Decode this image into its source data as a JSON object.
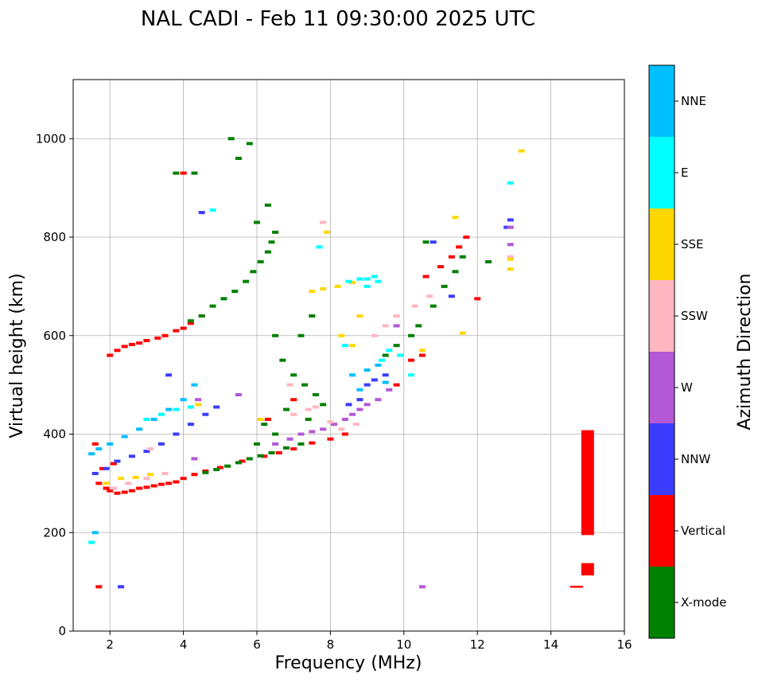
{
  "chart_data": {
    "type": "scatter",
    "title": "NAL CADI - Feb 11 09:30:00 2025 UTC",
    "xlabel": "Frequency (MHz)",
    "ylabel": "Virtual height (km)",
    "xlim": [
      1,
      16
    ],
    "ylim": [
      0,
      1120
    ],
    "xticks": [
      2,
      4,
      6,
      8,
      10,
      12,
      14,
      16
    ],
    "yticks": [
      0,
      200,
      400,
      600,
      800,
      1000
    ],
    "grid": true,
    "colorbar": {
      "label": "Azimuth Direction",
      "categories": [
        "X-mode",
        "Vertical",
        "NNW",
        "W",
        "SSW",
        "SSE",
        "E",
        "NNE"
      ],
      "colors": [
        "#008000",
        "#ff0000",
        "#3c3cff",
        "#b358d6",
        "#ffb6c1",
        "#ffd700",
        "#00ffff",
        "#00bfff"
      ]
    },
    "series": [
      {
        "name": "Vertical",
        "points": [
          [
            1.7,
            300
          ],
          [
            1.9,
            290
          ],
          [
            2.0,
            285
          ],
          [
            2.2,
            280
          ],
          [
            2.4,
            282
          ],
          [
            2.6,
            285
          ],
          [
            2.8,
            290
          ],
          [
            3.0,
            292
          ],
          [
            3.2,
            295
          ],
          [
            3.4,
            298
          ],
          [
            3.6,
            300
          ],
          [
            3.8,
            303
          ],
          [
            4.0,
            310
          ],
          [
            4.3,
            318
          ],
          [
            4.6,
            325
          ],
          [
            5.0,
            332
          ],
          [
            5.6,
            345
          ],
          [
            6.2,
            355
          ],
          [
            6.6,
            362
          ],
          [
            7.0,
            370
          ],
          [
            7.5,
            382
          ],
          [
            8.0,
            390
          ],
          [
            8.4,
            400
          ],
          [
            1.8,
            330
          ],
          [
            2.1,
            340
          ],
          [
            1.6,
            380
          ],
          [
            2.0,
            560
          ],
          [
            2.2,
            570
          ],
          [
            2.4,
            578
          ],
          [
            2.6,
            582
          ],
          [
            2.8,
            585
          ],
          [
            3.0,
            590
          ],
          [
            3.3,
            595
          ],
          [
            3.5,
            600
          ],
          [
            3.8,
            610
          ],
          [
            4.0,
            615
          ],
          [
            4.2,
            625
          ],
          [
            4.5,
            640
          ],
          [
            10.2,
            550
          ],
          [
            10.5,
            560
          ],
          [
            10.6,
            720
          ],
          [
            11.0,
            740
          ],
          [
            11.3,
            760
          ],
          [
            11.5,
            780
          ],
          [
            11.7,
            800
          ],
          [
            12.0,
            675
          ],
          [
            4.0,
            930
          ],
          [
            1.7,
            90
          ],
          [
            6.3,
            430
          ],
          [
            9.8,
            500
          ],
          [
            7.0,
            470
          ]
        ]
      },
      {
        "name": "X-mode",
        "points": [
          [
            4.6,
            322
          ],
          [
            4.9,
            328
          ],
          [
            5.2,
            335
          ],
          [
            5.5,
            342
          ],
          [
            5.8,
            350
          ],
          [
            6.1,
            356
          ],
          [
            6.4,
            362
          ],
          [
            6.8,
            372
          ],
          [
            7.2,
            380
          ],
          [
            4.2,
            630
          ],
          [
            4.5,
            640
          ],
          [
            4.8,
            660
          ],
          [
            5.1,
            675
          ],
          [
            5.4,
            690
          ],
          [
            5.7,
            710
          ],
          [
            5.9,
            730
          ],
          [
            6.1,
            750
          ],
          [
            6.3,
            770
          ],
          [
            6.4,
            790
          ],
          [
            6.5,
            810
          ],
          [
            6.3,
            865
          ],
          [
            6.0,
            830
          ],
          [
            5.5,
            960
          ],
          [
            5.8,
            990
          ],
          [
            5.3,
            1000
          ],
          [
            4.3,
            930
          ],
          [
            3.8,
            930
          ],
          [
            6.5,
            600
          ],
          [
            6.7,
            550
          ],
          [
            7.0,
            520
          ],
          [
            7.3,
            500
          ],
          [
            7.6,
            480
          ],
          [
            6.8,
            450
          ],
          [
            7.4,
            430
          ],
          [
            7.8,
            460
          ],
          [
            6.2,
            420
          ],
          [
            9.5,
            560
          ],
          [
            9.8,
            580
          ],
          [
            10.2,
            600
          ],
          [
            10.4,
            620
          ],
          [
            10.8,
            660
          ],
          [
            11.1,
            700
          ],
          [
            11.4,
            730
          ],
          [
            11.6,
            760
          ],
          [
            12.3,
            750
          ],
          [
            6.5,
            400
          ],
          [
            6.0,
            380
          ],
          [
            7.2,
            600
          ],
          [
            7.5,
            640
          ],
          [
            10.6,
            790
          ]
        ]
      },
      {
        "name": "NNW",
        "points": [
          [
            1.6,
            320
          ],
          [
            1.9,
            330
          ],
          [
            2.2,
            345
          ],
          [
            2.6,
            355
          ],
          [
            3.0,
            365
          ],
          [
            3.4,
            380
          ],
          [
            3.8,
            400
          ],
          [
            4.2,
            420
          ],
          [
            4.6,
            440
          ],
          [
            4.9,
            455
          ],
          [
            8.5,
            460
          ],
          [
            8.8,
            470
          ],
          [
            9.0,
            500
          ],
          [
            9.2,
            510
          ],
          [
            9.5,
            520
          ],
          [
            12.9,
            835
          ],
          [
            12.8,
            820
          ],
          [
            4.5,
            850
          ],
          [
            2.3,
            90
          ],
          [
            3.6,
            520
          ],
          [
            10.8,
            790
          ],
          [
            11.3,
            680
          ]
        ]
      },
      {
        "name": "W",
        "points": [
          [
            6.5,
            380
          ],
          [
            6.9,
            390
          ],
          [
            7.2,
            400
          ],
          [
            7.5,
            405
          ],
          [
            7.8,
            410
          ],
          [
            8.1,
            420
          ],
          [
            8.4,
            430
          ],
          [
            8.6,
            440
          ],
          [
            8.8,
            450
          ],
          [
            9.0,
            460
          ],
          [
            9.3,
            470
          ],
          [
            9.6,
            490
          ],
          [
            12.9,
            820
          ],
          [
            12.9,
            785
          ],
          [
            10.5,
            90
          ],
          [
            4.4,
            470
          ],
          [
            5.5,
            480
          ],
          [
            4.3,
            350
          ],
          [
            9.8,
            620
          ]
        ]
      },
      {
        "name": "SSW",
        "points": [
          [
            2.1,
            290
          ],
          [
            2.5,
            300
          ],
          [
            3.0,
            310
          ],
          [
            3.5,
            320
          ],
          [
            7.0,
            440
          ],
          [
            7.4,
            450
          ],
          [
            7.6,
            455
          ],
          [
            8.0,
            425
          ],
          [
            8.3,
            410
          ],
          [
            8.7,
            420
          ],
          [
            9.2,
            600
          ],
          [
            9.5,
            620
          ],
          [
            9.8,
            640
          ],
          [
            10.3,
            660
          ],
          [
            10.7,
            680
          ],
          [
            7.8,
            830
          ],
          [
            12.9,
            760
          ],
          [
            3.1,
            370
          ],
          [
            6.9,
            500
          ]
        ]
      },
      {
        "name": "SSE",
        "points": [
          [
            1.9,
            300
          ],
          [
            2.3,
            310
          ],
          [
            2.7,
            312
          ],
          [
            3.1,
            318
          ],
          [
            7.5,
            690
          ],
          [
            7.8,
            695
          ],
          [
            8.2,
            700
          ],
          [
            8.6,
            708
          ],
          [
            7.9,
            810
          ],
          [
            11.4,
            840
          ],
          [
            11.6,
            605
          ],
          [
            12.9,
            755
          ],
          [
            12.9,
            735
          ],
          [
            13.2,
            975
          ],
          [
            8.3,
            600
          ],
          [
            8.6,
            580
          ],
          [
            8.8,
            640
          ],
          [
            10.5,
            570
          ],
          [
            6.1,
            430
          ],
          [
            4.4,
            460
          ]
        ]
      },
      {
        "name": "E",
        "points": [
          [
            3.0,
            430
          ],
          [
            3.4,
            440
          ],
          [
            3.8,
            450
          ],
          [
            4.2,
            455
          ],
          [
            8.5,
            710
          ],
          [
            8.8,
            715
          ],
          [
            9.0,
            715
          ],
          [
            9.3,
            710
          ],
          [
            9.6,
            570
          ],
          [
            9.9,
            560
          ],
          [
            10.2,
            520
          ],
          [
            8.4,
            580
          ],
          [
            7.7,
            780
          ],
          [
            12.9,
            910
          ],
          [
            4.8,
            855
          ],
          [
            1.5,
            180
          ],
          [
            9.2,
            720
          ],
          [
            9.0,
            700
          ],
          [
            9.4,
            550
          ]
        ]
      },
      {
        "name": "NNE",
        "points": [
          [
            1.5,
            360
          ],
          [
            1.7,
            370
          ],
          [
            2.0,
            380
          ],
          [
            2.4,
            395
          ],
          [
            2.8,
            410
          ],
          [
            3.2,
            430
          ],
          [
            3.6,
            450
          ],
          [
            4.0,
            470
          ],
          [
            4.3,
            500
          ],
          [
            9.0,
            530
          ],
          [
            9.3,
            540
          ],
          [
            9.5,
            505
          ],
          [
            8.6,
            520
          ],
          [
            8.8,
            490
          ],
          [
            1.6,
            200
          ]
        ]
      }
    ],
    "rect_bars": [
      {
        "name": "Vertical",
        "x": 15.0,
        "y_min": 195,
        "y_max": 408
      },
      {
        "name": "Vertical",
        "x": 15.0,
        "y_min": 113,
        "y_max": 138
      },
      {
        "name": "Vertical",
        "x": 14.7,
        "y_min": 88,
        "y_max": 92
      }
    ]
  }
}
